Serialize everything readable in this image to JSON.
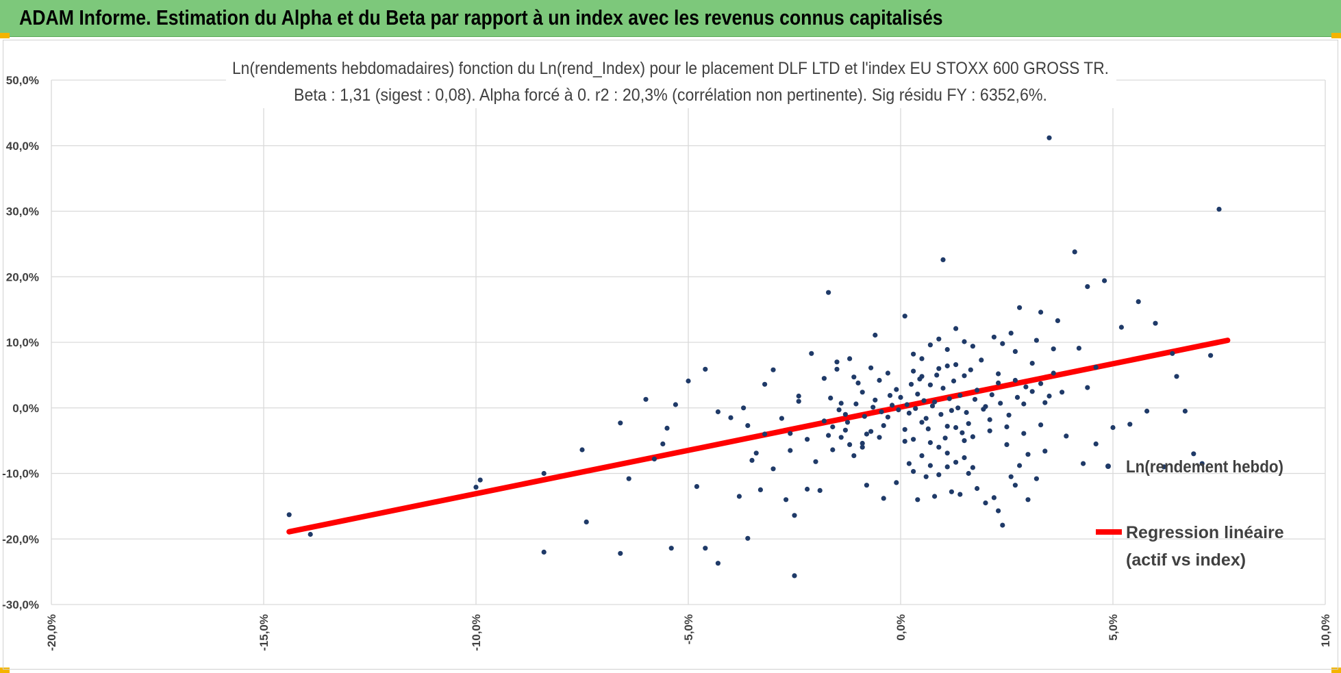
{
  "header": {
    "title": "ADAM Informe. Estimation du Alpha et du Beta par rapport à un index avec les revenus connus capitalisés"
  },
  "colors": {
    "banner": "#7dc87b",
    "scatter": "#1f3a68",
    "regression": "#ff0000",
    "grid": "#d9d9d9",
    "corner": "#f4b400"
  },
  "chart_data": {
    "type": "scatter",
    "title": "Ln(rendements hebdomadaires) fonction du Ln(rend_Index) pour le placement DLF LTD et l'index EU STOXX 600 GROSS TR.",
    "subtitle": "Beta : 1,31 (sigest : 0,08). Alpha forcé à 0. r2 : 20,3% (corrélation non pertinente). Sig résidu FY : 6352,6%.",
    "xlim": [
      -20,
      10
    ],
    "ylim": [
      -30,
      50
    ],
    "x_ticks": [
      "-20,0%",
      "-15,0%",
      "-10,0%",
      "-5,0%",
      "0,0%",
      "5,0%",
      "10,0%"
    ],
    "y_ticks": [
      "50,0%",
      "40,0%",
      "30,0%",
      "20,0%",
      "10,0%",
      "0,0%",
      "-10,0%",
      "-20,0%",
      "-30,0%"
    ],
    "grid": true,
    "legend_position": "right",
    "series": [
      {
        "name": "Ln(rendement hebdo)",
        "kind": "scatter",
        "points": [
          [
            -14.4,
            -16.3
          ],
          [
            -13.9,
            -19.3
          ],
          [
            -10.0,
            -12.1
          ],
          [
            -9.9,
            -11.0
          ],
          [
            -8.4,
            -10.0
          ],
          [
            -8.4,
            -22.0
          ],
          [
            -7.5,
            -6.4
          ],
          [
            -7.4,
            -17.4
          ],
          [
            -6.6,
            -2.3
          ],
          [
            -6.6,
            -22.2
          ],
          [
            -6.4,
            -10.8
          ],
          [
            -6.0,
            1.3
          ],
          [
            -5.8,
            -7.8
          ],
          [
            -5.6,
            -5.5
          ],
          [
            -5.5,
            -3.1
          ],
          [
            -5.4,
            -21.4
          ],
          [
            -5.3,
            0.5
          ],
          [
            -5.0,
            4.1
          ],
          [
            -4.8,
            -12.0
          ],
          [
            -4.6,
            -21.4
          ],
          [
            -4.6,
            5.9
          ],
          [
            -4.3,
            -0.6
          ],
          [
            -4.3,
            -23.7
          ],
          [
            -4.0,
            -1.5
          ],
          [
            -3.8,
            -13.5
          ],
          [
            -3.7,
            0.0
          ],
          [
            -3.6,
            -19.9
          ],
          [
            -3.5,
            -8.0
          ],
          [
            -3.3,
            -12.5
          ],
          [
            -3.2,
            3.6
          ],
          [
            -3.0,
            5.8
          ],
          [
            -2.7,
            -14.0
          ],
          [
            -2.6,
            -3.9
          ],
          [
            -2.5,
            -16.4
          ],
          [
            -2.5,
            -25.6
          ],
          [
            -2.4,
            1.8
          ],
          [
            -2.2,
            -12.4
          ],
          [
            -2.1,
            8.3
          ],
          [
            -1.9,
            -12.6
          ],
          [
            -1.7,
            17.6
          ],
          [
            -1.5,
            7.0
          ],
          [
            -1.2,
            7.5
          ],
          [
            -0.9,
            -6.0
          ],
          [
            -0.8,
            -11.8
          ],
          [
            -0.6,
            11.1
          ],
          [
            -0.4,
            -13.8
          ],
          [
            -0.1,
            -11.4
          ],
          [
            0.1,
            14.0
          ],
          [
            0.2,
            -8.5
          ],
          [
            0.4,
            -14.0
          ],
          [
            0.6,
            -10.5
          ],
          [
            0.8,
            -13.5
          ],
          [
            1.0,
            22.6
          ],
          [
            1.1,
            -9.0
          ],
          [
            1.2,
            -12.8
          ],
          [
            1.4,
            -13.2
          ],
          [
            1.6,
            -10.0
          ],
          [
            1.8,
            -12.3
          ],
          [
            2.0,
            -14.5
          ],
          [
            2.2,
            -13.7
          ],
          [
            2.3,
            -15.7
          ],
          [
            2.4,
            -17.9
          ],
          [
            2.6,
            -10.5
          ],
          [
            2.7,
            -11.8
          ],
          [
            2.8,
            15.3
          ],
          [
            3.0,
            -14.0
          ],
          [
            3.2,
            -10.8
          ],
          [
            3.3,
            14.6
          ],
          [
            3.5,
            41.2
          ],
          [
            3.7,
            13.3
          ],
          [
            3.9,
            -4.3
          ],
          [
            4.1,
            23.8
          ],
          [
            4.3,
            -8.5
          ],
          [
            4.4,
            18.5
          ],
          [
            4.6,
            -5.5
          ],
          [
            4.8,
            19.4
          ],
          [
            5.0,
            -3.0
          ],
          [
            5.2,
            12.3
          ],
          [
            5.4,
            -2.5
          ],
          [
            5.6,
            16.2
          ],
          [
            5.8,
            -0.5
          ],
          [
            6.0,
            12.9
          ],
          [
            6.2,
            -9.0
          ],
          [
            6.4,
            8.3
          ],
          [
            6.5,
            4.8
          ],
          [
            6.7,
            -0.5
          ],
          [
            6.9,
            -7.0
          ],
          [
            7.1,
            -8.5
          ],
          [
            7.3,
            8.0
          ],
          [
            7.5,
            30.3
          ],
          [
            4.2,
            9.1
          ],
          [
            4.4,
            3.1
          ],
          [
            4.6,
            6.2
          ],
          [
            3.8,
            2.4
          ],
          [
            3.6,
            5.3
          ],
          [
            3.4,
            0.8
          ],
          [
            -2.0,
            -8.2
          ],
          [
            -1.8,
            -2.0
          ],
          [
            -1.6,
            -6.4
          ],
          [
            -1.4,
            -4.5
          ],
          [
            -1.3,
            -1.0
          ],
          [
            -1.1,
            -7.3
          ],
          [
            -0.9,
            2.4
          ],
          [
            -0.7,
            -3.6
          ],
          [
            -0.5,
            4.2
          ],
          [
            -0.3,
            -1.4
          ],
          [
            -0.1,
            2.8
          ],
          [
            0.1,
            -5.1
          ],
          [
            0.3,
            5.6
          ],
          [
            0.5,
            -2.2
          ],
          [
            0.7,
            3.5
          ],
          [
            0.9,
            -6.0
          ],
          [
            1.1,
            6.4
          ],
          [
            1.3,
            -3.0
          ],
          [
            1.5,
            4.9
          ],
          [
            1.7,
            -4.4
          ],
          [
            1.9,
            7.3
          ],
          [
            2.1,
            -1.8
          ],
          [
            2.3,
            5.2
          ],
          [
            2.5,
            -5.6
          ],
          [
            2.7,
            8.6
          ],
          [
            2.9,
            0.6
          ],
          [
            3.1,
            6.8
          ],
          [
            3.3,
            -2.6
          ],
          [
            -0.2,
            0.4
          ],
          [
            0.0,
            1.6
          ],
          [
            0.2,
            -0.8
          ],
          [
            0.4,
            2.1
          ],
          [
            0.6,
            -1.6
          ],
          [
            0.8,
            0.9
          ],
          [
            1.0,
            3.0
          ],
          [
            1.2,
            -0.4
          ],
          [
            1.4,
            1.9
          ],
          [
            1.6,
            -2.4
          ],
          [
            1.8,
            2.7
          ],
          [
            2.0,
            0.2
          ],
          [
            -0.4,
            -2.7
          ],
          [
            -0.6,
            1.2
          ],
          [
            -0.8,
            -4.0
          ],
          [
            -1.0,
            3.8
          ],
          [
            -1.2,
            -5.6
          ],
          [
            -1.4,
            0.7
          ],
          [
            -1.6,
            -2.9
          ],
          [
            -1.8,
            4.5
          ],
          [
            -2.2,
            -4.8
          ],
          [
            -2.4,
            1.0
          ],
          [
            -2.6,
            -6.5
          ],
          [
            -2.8,
            -1.6
          ],
          [
            -3.0,
            -9.3
          ],
          [
            -3.2,
            -4.0
          ],
          [
            -3.4,
            -6.9
          ],
          [
            -3.6,
            -2.7
          ],
          [
            0.3,
            8.2
          ],
          [
            0.5,
            7.5
          ],
          [
            0.7,
            9.6
          ],
          [
            0.9,
            10.5
          ],
          [
            1.1,
            8.9
          ],
          [
            1.3,
            12.1
          ],
          [
            1.5,
            10.1
          ],
          [
            1.7,
            9.4
          ],
          [
            0.3,
            -9.7
          ],
          [
            0.5,
            -7.3
          ],
          [
            0.7,
            -8.8
          ],
          [
            0.9,
            -10.2
          ],
          [
            1.1,
            -6.9
          ],
          [
            1.3,
            -8.3
          ],
          [
            1.5,
            -7.6
          ],
          [
            1.7,
            -9.1
          ],
          [
            2.2,
            10.8
          ],
          [
            2.4,
            9.8
          ],
          [
            2.6,
            11.4
          ],
          [
            2.8,
            -8.8
          ],
          [
            3.0,
            -7.1
          ],
          [
            3.2,
            10.3
          ],
          [
            3.4,
            -6.6
          ],
          [
            3.6,
            9.0
          ],
          [
            -0.05,
            -0.3
          ],
          [
            0.15,
            0.5
          ],
          [
            0.35,
            -0.1
          ],
          [
            0.55,
            1.1
          ],
          [
            0.75,
            0.3
          ],
          [
            0.95,
            -1.0
          ],
          [
            1.15,
            1.4
          ],
          [
            1.35,
            0.0
          ],
          [
            1.55,
            -0.7
          ],
          [
            1.75,
            1.3
          ],
          [
            1.95,
            -0.2
          ],
          [
            2.15,
            2.0
          ],
          [
            2.35,
            0.7
          ],
          [
            2.55,
            -1.1
          ],
          [
            2.75,
            1.6
          ],
          [
            2.95,
            3.2
          ],
          [
            -0.25,
            1.9
          ],
          [
            -0.45,
            -0.6
          ],
          [
            -0.65,
            0.1
          ],
          [
            -0.85,
            -1.3
          ],
          [
            -1.05,
            0.6
          ],
          [
            -1.25,
            -2.2
          ],
          [
            -1.45,
            -0.3
          ],
          [
            -1.65,
            1.5
          ],
          [
            0.25,
            3.6
          ],
          [
            0.45,
            4.4
          ],
          [
            0.65,
            -3.2
          ],
          [
            0.85,
            5.0
          ],
          [
            1.05,
            -4.6
          ],
          [
            1.25,
            4.1
          ],
          [
            1.45,
            -3.8
          ],
          [
            1.65,
            5.8
          ],
          [
            0.1,
            -3.3
          ],
          [
            0.3,
            -4.8
          ],
          [
            0.5,
            4.8
          ],
          [
            0.7,
            -5.3
          ],
          [
            0.9,
            6.0
          ],
          [
            1.1,
            -2.8
          ],
          [
            1.3,
            6.6
          ],
          [
            1.5,
            -5.0
          ],
          [
            -0.3,
            5.3
          ],
          [
            -0.5,
            -4.5
          ],
          [
            -0.7,
            6.1
          ],
          [
            -0.9,
            -5.4
          ],
          [
            -1.1,
            4.7
          ],
          [
            -1.3,
            -3.4
          ],
          [
            -1.5,
            5.9
          ],
          [
            -1.7,
            -4.2
          ],
          [
            2.1,
            -3.5
          ],
          [
            2.3,
            3.8
          ],
          [
            2.5,
            -2.9
          ],
          [
            2.7,
            4.2
          ],
          [
            2.9,
            -3.9
          ],
          [
            3.1,
            2.5
          ],
          [
            3.3,
            3.7
          ],
          [
            3.5,
            1.8
          ]
        ]
      },
      {
        "name": "Regression linéaire (actif vs index)",
        "kind": "line",
        "points": [
          [
            -14.4,
            -18.9
          ],
          [
            7.7,
            10.3
          ]
        ]
      }
    ]
  }
}
